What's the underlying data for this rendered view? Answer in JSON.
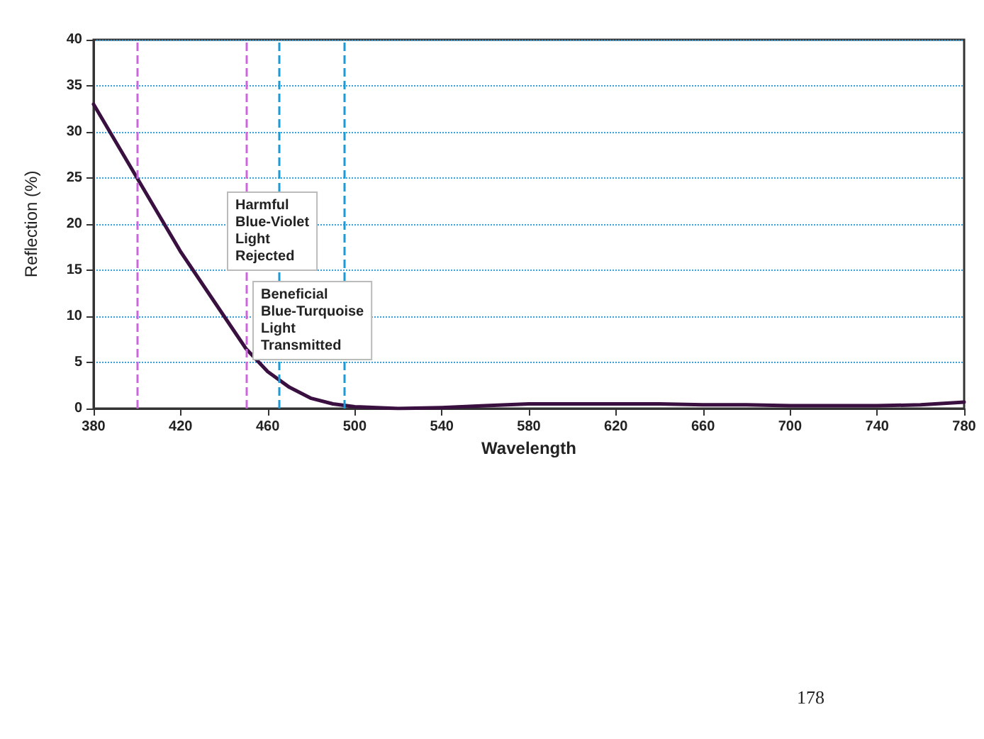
{
  "chart_data": {
    "type": "line",
    "xlabel": "Wavelength",
    "ylabel": "Reflection (%)",
    "x": [
      380,
      390,
      400,
      410,
      420,
      430,
      440,
      450,
      460,
      470,
      480,
      490,
      500,
      510,
      520,
      540,
      560,
      580,
      600,
      620,
      640,
      660,
      680,
      700,
      720,
      740,
      760,
      780
    ],
    "series": [
      {
        "color": "#3a1040",
        "values": [
          33,
          29,
          25,
          21,
          17,
          13.5,
          10,
          6.5,
          4,
          2.3,
          1.1,
          0.5,
          0.2,
          0.1,
          0,
          0.1,
          0.3,
          0.5,
          0.5,
          0.5,
          0.5,
          0.4,
          0.4,
          0.3,
          0.3,
          0.3,
          0.4,
          0.7
        ]
      }
    ],
    "xlim": [
      380,
      780
    ],
    "xticks": [
      380,
      420,
      460,
      500,
      540,
      580,
      620,
      660,
      700,
      740,
      780
    ],
    "ylim": [
      0,
      40
    ],
    "yticks": [
      0,
      5,
      10,
      15,
      20,
      25,
      30,
      35,
      40
    ],
    "grid": "y",
    "marker": "none",
    "line_style": "solid",
    "ref_lines": [
      {
        "axis": "x",
        "value": 400,
        "color": "#cc66dd",
        "line_style": "dashed"
      },
      {
        "axis": "x",
        "value": 450,
        "color": "#cc66dd",
        "line_style": "dashed"
      },
      {
        "axis": "x",
        "value": 465,
        "color": "#1a9ad6",
        "line_style": "dashed"
      },
      {
        "axis": "x",
        "value": 495,
        "color": "#1a9ad6",
        "line_style": "dashed"
      }
    ],
    "annotations": [
      "Harmful\nBlue-Violet\nLight\nRejected",
      "Beneficial\nBlue-Turquoise\nLight\nTransmitted",
      "178"
    ]
  }
}
